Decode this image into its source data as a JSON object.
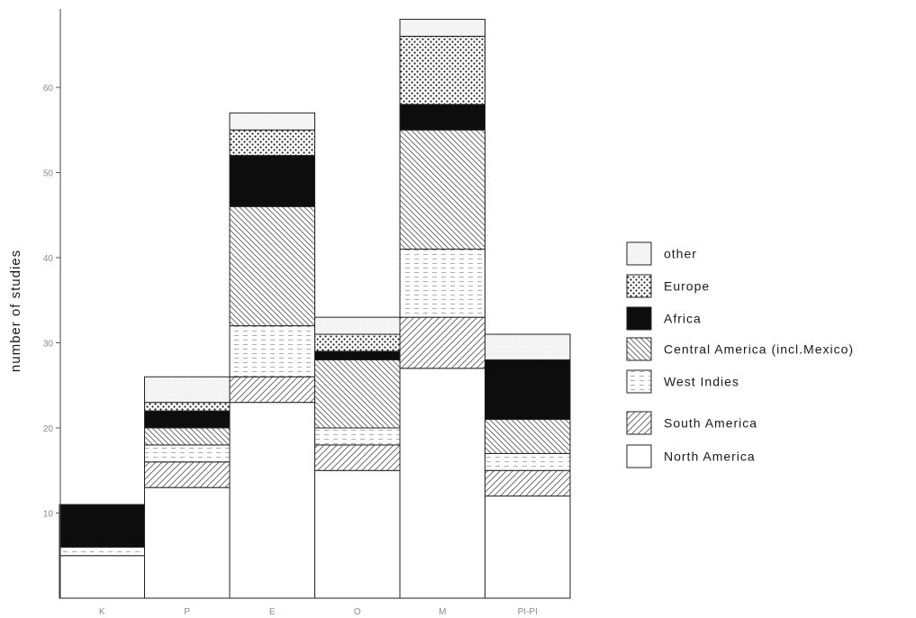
{
  "chart_data": {
    "type": "bar",
    "stacked": true,
    "title": "",
    "xlabel": "",
    "ylabel": "number of studies",
    "ylim": [
      0,
      70
    ],
    "yticks": [
      10,
      20,
      30,
      40,
      50,
      60
    ],
    "ytick_labels": [
      "10",
      "20",
      "30",
      "40",
      "50",
      "60"
    ],
    "grid": false,
    "legend_position": "right",
    "categories": [
      "K",
      "P",
      "E",
      "O",
      "M",
      "PI-PI"
    ],
    "series": [
      {
        "name": "North America",
        "pattern": "white",
        "values": [
          5,
          13,
          23,
          15,
          27,
          12
        ]
      },
      {
        "name": "South America",
        "pattern": "diagonal-fwd",
        "values": [
          0,
          3,
          3,
          3,
          6,
          3
        ]
      },
      {
        "name": "West Indies",
        "pattern": "dashed-horizontal",
        "values": [
          1,
          2,
          6,
          2,
          8,
          2
        ]
      },
      {
        "name": "Central America (incl.Mexico)",
        "pattern": "diagonal-back",
        "values": [
          0,
          2,
          14,
          8,
          14,
          4
        ]
      },
      {
        "name": "Africa",
        "pattern": "solid-black",
        "values": [
          5,
          2,
          6,
          1,
          3,
          7
        ]
      },
      {
        "name": "Europe",
        "pattern": "dots",
        "values": [
          0,
          1,
          3,
          2,
          8,
          0
        ]
      },
      {
        "name": "other",
        "pattern": "light-stipple",
        "values": [
          0,
          3,
          2,
          2,
          2,
          3
        ]
      }
    ],
    "legend_order": [
      "other",
      "Europe",
      "Africa",
      "Central America (incl.Mexico)",
      "West Indies",
      "South America",
      "North America"
    ]
  }
}
